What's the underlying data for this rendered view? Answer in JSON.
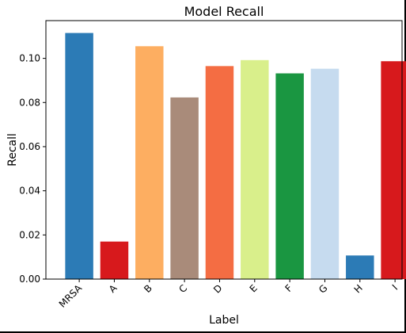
{
  "chart_data": {
    "type": "bar",
    "title": "Model Recall",
    "xlabel": "Label",
    "ylabel": "Recall",
    "categories": [
      "MRSA",
      "A",
      "B",
      "C",
      "D",
      "E",
      "F",
      "G",
      "H",
      "I"
    ],
    "values": [
      0.1115,
      0.017,
      0.1055,
      0.0823,
      0.0965,
      0.0992,
      0.0932,
      0.0953,
      0.0107,
      0.0987
    ],
    "colors": [
      "#2c7bb6",
      "#d7191c",
      "#fdae61",
      "#a98b7a",
      "#f46d43",
      "#d9ef8b",
      "#1a9641",
      "#c6dbef",
      "#2c7bb6",
      "#d7191c"
    ],
    "ylim": [
      0,
      0.1171
    ],
    "yticks": [
      "0.00",
      "0.02",
      "0.04",
      "0.06",
      "0.08",
      "0.10"
    ],
    "ytick_values": [
      0.0,
      0.02,
      0.04,
      0.06,
      0.08,
      0.1
    ],
    "xtick_rotation_deg": 45,
    "grid": false,
    "legend": "none"
  }
}
